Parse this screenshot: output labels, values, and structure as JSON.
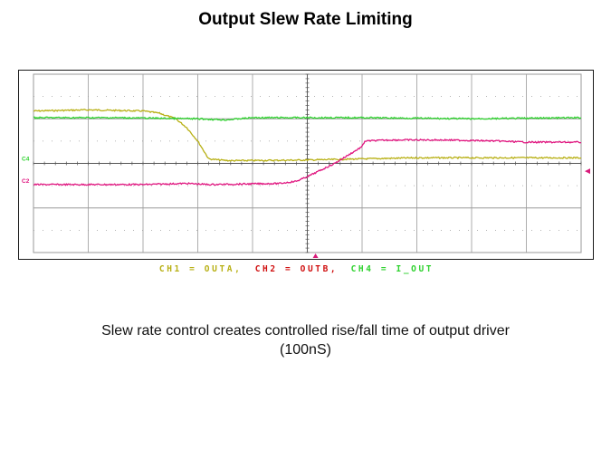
{
  "title": "Output Slew Rate Limiting",
  "colors": {
    "ch1": "#b8b015",
    "ch2": "#e0157f",
    "ch4": "#2fd22f",
    "ch2_legend": "#d01010",
    "grid": "#9a9a9a",
    "trigger": "#d81b7a"
  },
  "chart_data": {
    "type": "line",
    "xlim": [
      0,
      10
    ],
    "ylim": [
      0,
      8
    ],
    "grid": true,
    "xdivisions": 10,
    "ydivisions": 8,
    "series": [
      {
        "name": "CH1 = OUTA",
        "x": [
          0,
          1.0,
          2.0,
          2.3,
          2.6,
          2.8,
          3.0,
          3.1,
          3.2,
          3.4,
          3.6,
          5.0,
          6.0,
          7.0,
          8.0,
          10.0
        ],
        "y": [
          6.35,
          6.4,
          6.35,
          6.25,
          6.0,
          5.6,
          5.0,
          4.6,
          4.2,
          4.15,
          4.12,
          4.15,
          4.2,
          4.25,
          4.25,
          4.25
        ]
      },
      {
        "name": "CH2 = OUTB",
        "x": [
          0,
          1.0,
          2.0,
          2.8,
          3.2,
          4.5,
          4.8,
          5.0,
          5.5,
          6.0,
          6.05,
          6.5,
          7.5,
          8.5,
          9.0,
          10.0
        ],
        "y": [
          3.05,
          3.05,
          3.05,
          3.1,
          3.05,
          3.1,
          3.2,
          3.4,
          4.0,
          4.75,
          5.0,
          5.05,
          5.05,
          5.0,
          4.95,
          4.95
        ]
      },
      {
        "name": "CH4 = I_OUT",
        "x": [
          0,
          1.5,
          3.0,
          3.5,
          4.0,
          5.0,
          6.0,
          8.0,
          10.0
        ],
        "y": [
          6.05,
          6.05,
          6.0,
          5.95,
          6.05,
          6.05,
          6.05,
          6.0,
          6.05
        ]
      }
    ],
    "channel_markers": [
      {
        "label": "C4",
        "y": 4.25
      },
      {
        "label": "C2",
        "y": 3.25
      }
    ],
    "trigger_x": 5.15,
    "right_marker_y": 3.65
  },
  "legend": {
    "ch1": "CH1 = OUTA,",
    "ch2": "CH2 = OUTB,",
    "ch4": "CH4 = I_OUT"
  },
  "caption": {
    "line1": "Slew rate control creates controlled rise/fall time of output driver",
    "line2": "(100nS)"
  }
}
